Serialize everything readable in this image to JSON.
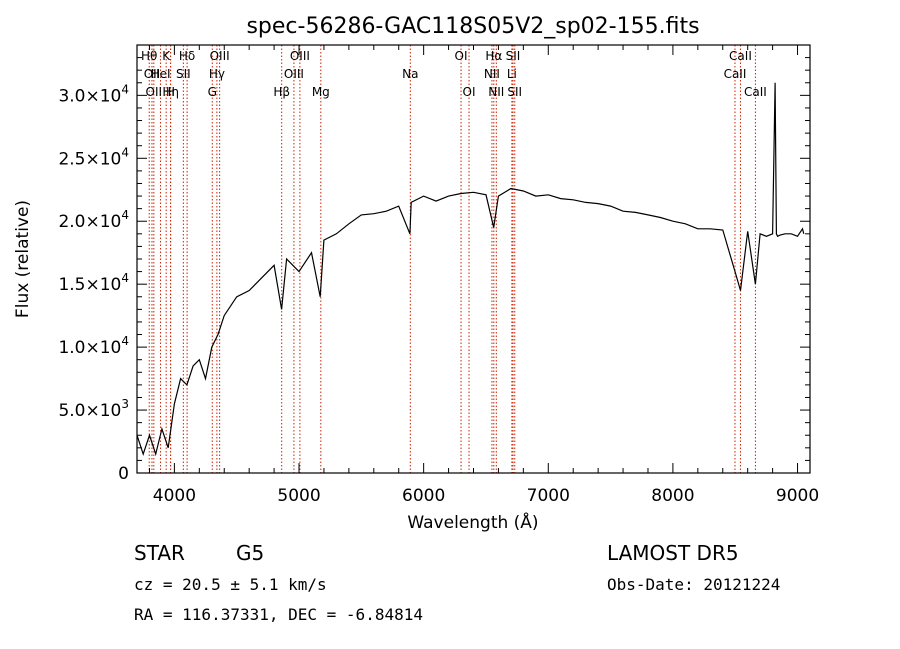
{
  "chart_data": {
    "type": "line",
    "title": "spec-56286-GAC118S05V2_sp02-155.fits",
    "xlabel": "Wavelength (Å)",
    "ylabel": "Flux (relative)",
    "xlim": [
      3700,
      9100
    ],
    "ylim": [
      0,
      34000
    ],
    "x_ticks": [
      4000,
      5000,
      6000,
      7000,
      8000,
      9000
    ],
    "x_tick_labels": [
      "4000",
      "5000",
      "6000",
      "7000",
      "8000",
      "9000"
    ],
    "y_ticks": [
      0,
      5000,
      10000,
      15000,
      20000,
      25000,
      30000
    ],
    "y_tick_labels": [
      {
        "mant": "0",
        "exp": ""
      },
      {
        "mant": "5.0×10",
        "exp": "3"
      },
      {
        "mant": "1.0×10",
        "exp": "4"
      },
      {
        "mant": "1.5×10",
        "exp": "4"
      },
      {
        "mant": "2.0×10",
        "exp": "4"
      },
      {
        "mant": "2.5×10",
        "exp": "4"
      },
      {
        "mant": "3.0×10",
        "exp": "4"
      }
    ],
    "series": [
      {
        "color": "#000000",
        "x": [
          3700,
          3750,
          3800,
          3850,
          3900,
          3950,
          4000,
          4050,
          4100,
          4150,
          4200,
          4250,
          4300,
          4350,
          4400,
          4500,
          4600,
          4700,
          4800,
          4860,
          4900,
          5000,
          5100,
          5170,
          5200,
          5300,
          5400,
          5500,
          5600,
          5700,
          5800,
          5890,
          5900,
          6000,
          6100,
          6200,
          6300,
          6400,
          6500,
          6562,
          6600,
          6700,
          6800,
          6900,
          7000,
          7100,
          7200,
          7300,
          7400,
          7500,
          7600,
          7700,
          7800,
          7900,
          8000,
          8100,
          8200,
          8300,
          8400,
          8498,
          8542,
          8600,
          8662,
          8700,
          8750,
          8800,
          8820,
          8830,
          8840,
          8860,
          8900,
          8950,
          9000,
          9040,
          9050
        ],
        "values": [
          3000,
          1500,
          3000,
          1500,
          3500,
          2000,
          5500,
          7500,
          7000,
          8500,
          9000,
          7500,
          10000,
          11000,
          12500,
          14000,
          14500,
          15500,
          16500,
          13000,
          17000,
          16000,
          17500,
          14000,
          18500,
          19000,
          19800,
          20500,
          20600,
          20800,
          21200,
          19000,
          21500,
          22000,
          21600,
          22000,
          22200,
          22300,
          22100,
          19500,
          22000,
          22600,
          22400,
          22000,
          22100,
          21800,
          21700,
          21500,
          21400,
          21200,
          20800,
          20700,
          20500,
          20300,
          20000,
          19800,
          19400,
          19400,
          19300,
          16000,
          14500,
          19200,
          15000,
          19000,
          18800,
          19000,
          31000,
          19000,
          18800,
          18900,
          19000,
          19000,
          18800,
          19400,
          19000
        ]
      }
    ],
    "spectral_lines": [
      {
        "wave": 3798,
        "label": "Hθ",
        "row": 1
      },
      {
        "wave": 3820,
        "label": "OII",
        "row": 2
      },
      {
        "wave": 3835,
        "label": "OII",
        "row": 3
      },
      {
        "wave": 3889,
        "label": "HeI",
        "row": 2
      },
      {
        "wave": 3934,
        "label": "K",
        "row": 1
      },
      {
        "wave": 3969,
        "label": "H",
        "row": 3
      },
      {
        "wave": 3970,
        "label": "Hη",
        "row": 3
      },
      {
        "wave": 4072,
        "label": "SII",
        "row": 2
      },
      {
        "wave": 4102,
        "label": "Hδ",
        "row": 1
      },
      {
        "wave": 4304,
        "label": "G",
        "row": 3
      },
      {
        "wave": 4341,
        "label": "Hγ",
        "row": 2
      },
      {
        "wave": 4363,
        "label": "OIII",
        "row": 1
      },
      {
        "wave": 4861,
        "label": "Hβ",
        "row": 3
      },
      {
        "wave": 4959,
        "label": "OIII",
        "row": 2
      },
      {
        "wave": 5007,
        "label": "OIII",
        "row": 1
      },
      {
        "wave": 5175,
        "label": "Mg",
        "row": 3
      },
      {
        "wave": 5893,
        "label": "Na",
        "row": 2
      },
      {
        "wave": 6300,
        "label": "OI",
        "row": 1
      },
      {
        "wave": 6364,
        "label": "OI",
        "row": 3
      },
      {
        "wave": 6548,
        "label": "NII",
        "row": 2
      },
      {
        "wave": 6563,
        "label": "Hα",
        "row": 1
      },
      {
        "wave": 6583,
        "label": "NII",
        "row": 3
      },
      {
        "wave": 6708,
        "label": "Li",
        "row": 2
      },
      {
        "wave": 6717,
        "label": "SII",
        "row": 1
      },
      {
        "wave": 6731,
        "label": "SII",
        "row": 3
      },
      {
        "wave": 8498,
        "label": "CaII",
        "row": 2
      },
      {
        "wave": 8542,
        "label": "CaII",
        "row": 1
      },
      {
        "wave": 8662,
        "label": "CaII",
        "row": 3
      }
    ],
    "line_color": "#cc2200"
  },
  "info": {
    "obj_class": "STAR",
    "subclass": "G5",
    "survey": "LAMOST DR5",
    "redshift": "cz = 20.5 ± 5.1 km/s",
    "obs_date": "Obs-Date: 20121224",
    "coords": "RA = 116.37331, DEC =  -6.84814"
  }
}
